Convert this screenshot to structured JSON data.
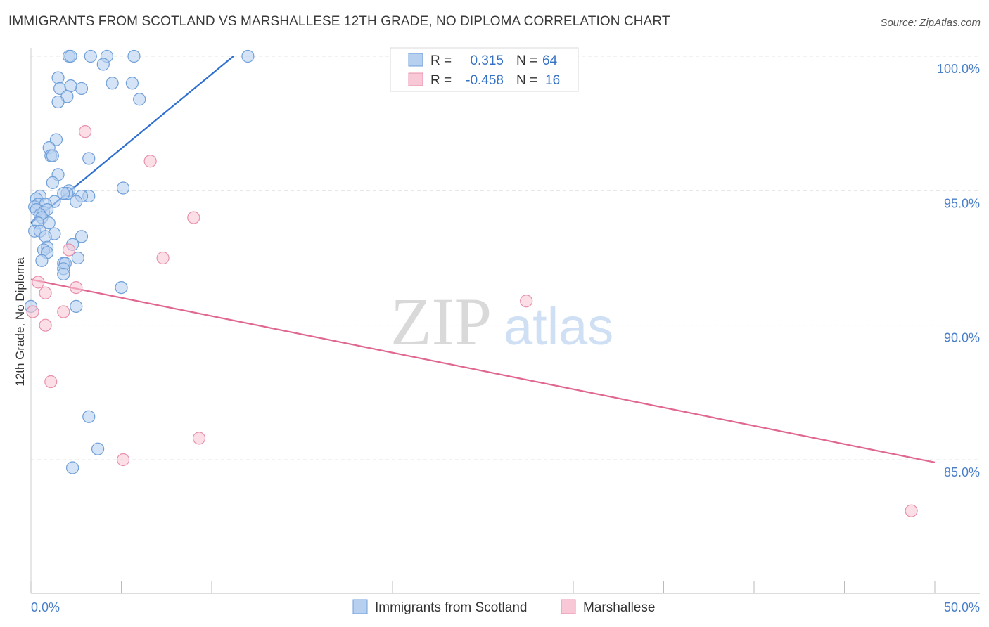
{
  "header": {
    "title": "IMMIGRANTS FROM SCOTLAND VS MARSHALLESE 12TH GRADE, NO DIPLOMA CORRELATION CHART",
    "source": "Source: ZipAtlas.com"
  },
  "watermark": {
    "zip": "ZIP",
    "atlas": "atlas"
  },
  "legend": {
    "rows": [
      {
        "r_label": "R =",
        "r_value": "0.315",
        "n_label": "N =",
        "n_value": "64"
      },
      {
        "r_label": "R =",
        "r_value": "-0.458",
        "n_label": "N =",
        "n_value": "16"
      }
    ]
  },
  "colors": {
    "scotland_fill": "#b8d0f0",
    "scotland_stroke": "#6f9fd8",
    "scotland_line": "#2f6fd0",
    "marshallese_fill": "#f8c8d6",
    "marshallese_stroke": "#e890ac",
    "marshallese_line": "#e06890",
    "grid": "#e4e4e4",
    "tick_text": "#4a7fc8"
  },
  "chart_data": {
    "type": "scatter",
    "title": "IMMIGRANTS FROM SCOTLAND VS MARSHALLESE 12TH GRADE, NO DIPLOMA CORRELATION CHART",
    "xlabel": "",
    "ylabel": "12th Grade, No Diploma",
    "xlim": [
      0,
      50
    ],
    "ylim": [
      80.5,
      100.5
    ],
    "x_ticks": [
      "0.0%",
      "50.0%"
    ],
    "y_ticks": [
      {
        "value": 100,
        "label": "100.0%"
      },
      {
        "value": 95,
        "label": "95.0%"
      },
      {
        "value": 90,
        "label": "90.0%"
      },
      {
        "value": 85,
        "label": "85.0%"
      }
    ],
    "grid": true,
    "legend_position": "top-center",
    "series": [
      {
        "name": "Immigrants from Scotland",
        "color": "#b8d0f0",
        "trend": {
          "x": [
            0,
            11.2
          ],
          "y": [
            93.8,
            100
          ]
        },
        "points": [
          [
            2.1,
            100
          ],
          [
            2.2,
            100
          ],
          [
            3.3,
            100
          ],
          [
            4.2,
            100
          ],
          [
            5.7,
            100
          ],
          [
            12.0,
            100
          ],
          [
            4.0,
            99.7
          ],
          [
            1.5,
            99.2
          ],
          [
            4.5,
            99.0
          ],
          [
            5.6,
            99.0
          ],
          [
            1.6,
            98.8
          ],
          [
            2.8,
            98.8
          ],
          [
            2.2,
            98.9
          ],
          [
            2.0,
            98.5
          ],
          [
            6.0,
            98.4
          ],
          [
            1.5,
            98.3
          ],
          [
            1.4,
            96.9
          ],
          [
            1.0,
            96.6
          ],
          [
            1.1,
            96.3
          ],
          [
            1.2,
            96.3
          ],
          [
            3.2,
            96.2
          ],
          [
            1.5,
            95.6
          ],
          [
            1.2,
            95.3
          ],
          [
            5.1,
            95.1
          ],
          [
            2.1,
            95.0
          ],
          [
            2.0,
            94.9
          ],
          [
            1.8,
            94.9
          ],
          [
            3.2,
            94.8
          ],
          [
            2.8,
            94.8
          ],
          [
            2.5,
            94.6
          ],
          [
            0.5,
            94.8
          ],
          [
            0.3,
            94.7
          ],
          [
            0.4,
            94.5
          ],
          [
            1.3,
            94.6
          ],
          [
            0.8,
            94.5
          ],
          [
            0.2,
            94.4
          ],
          [
            0.3,
            94.3
          ],
          [
            0.7,
            94.2
          ],
          [
            0.9,
            94.3
          ],
          [
            0.5,
            94.1
          ],
          [
            0.6,
            94.0
          ],
          [
            0.4,
            93.8
          ],
          [
            1.0,
            93.8
          ],
          [
            0.2,
            93.5
          ],
          [
            0.5,
            93.5
          ],
          [
            1.3,
            93.4
          ],
          [
            0.8,
            93.3
          ],
          [
            2.8,
            93.3
          ],
          [
            0.9,
            92.9
          ],
          [
            2.3,
            93.0
          ],
          [
            0.7,
            92.8
          ],
          [
            0.9,
            92.7
          ],
          [
            2.6,
            92.5
          ],
          [
            0.6,
            92.4
          ],
          [
            1.8,
            92.3
          ],
          [
            1.9,
            92.3
          ],
          [
            1.8,
            92.1
          ],
          [
            1.8,
            91.9
          ],
          [
            5.0,
            91.4
          ],
          [
            2.5,
            90.7
          ],
          [
            0.0,
            90.7
          ],
          [
            3.2,
            86.6
          ],
          [
            3.7,
            85.4
          ],
          [
            2.3,
            84.7
          ]
        ]
      },
      {
        "name": "Marshallese",
        "color": "#f8c8d6",
        "trend": {
          "x": [
            0,
            50
          ],
          "y": [
            91.7,
            84.9
          ]
        },
        "points": [
          [
            3.0,
            97.2
          ],
          [
            6.6,
            96.1
          ],
          [
            9.0,
            94.0
          ],
          [
            7.3,
            92.5
          ],
          [
            2.1,
            92.8
          ],
          [
            0.4,
            91.6
          ],
          [
            0.8,
            91.2
          ],
          [
            2.5,
            91.4
          ],
          [
            1.8,
            90.5
          ],
          [
            0.1,
            90.5
          ],
          [
            0.8,
            90.0
          ],
          [
            27.4,
            90.9
          ],
          [
            1.1,
            87.9
          ],
          [
            9.3,
            85.8
          ],
          [
            5.1,
            85.0
          ],
          [
            48.7,
            83.1
          ]
        ]
      }
    ]
  }
}
